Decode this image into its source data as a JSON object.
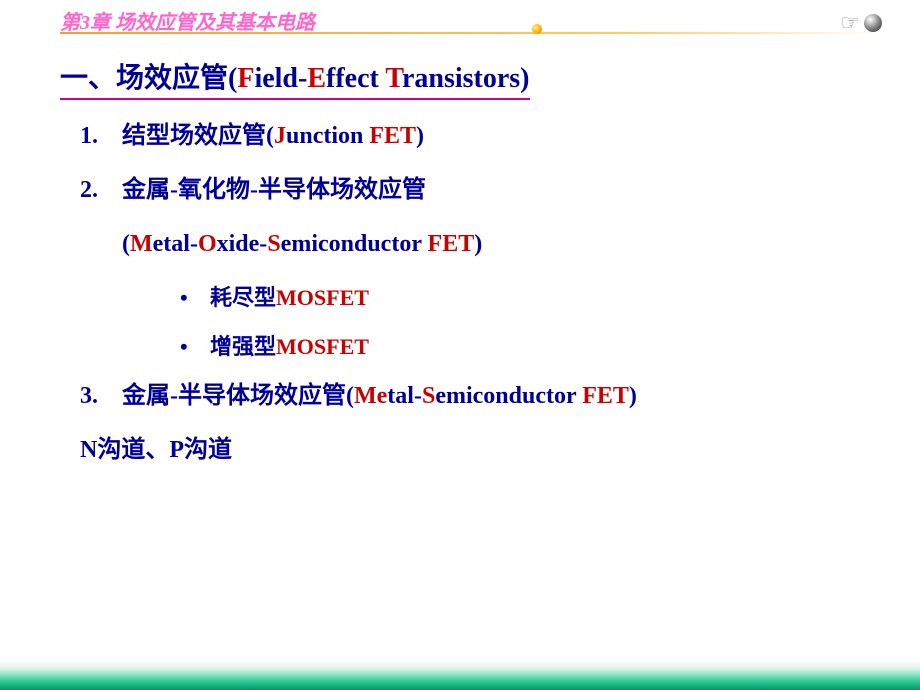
{
  "header": {
    "chapter_title": "第3章  场效应管及其基本电路"
  },
  "heading": {
    "prefix": "一、场效应管(",
    "f": "F",
    "mid1": "ield-",
    "e": "E",
    "mid2": "ffect ",
    "t": "T",
    "suffix": "ransistors)"
  },
  "items": [
    {
      "num": "1.",
      "cn": "结型场效应管(",
      "r1": "J",
      "p1": "unction ",
      "r2": "FET",
      "p2": ")"
    },
    {
      "num": "2.",
      "cn": "金属-氧化物-半导体场效应管",
      "line2_open": "(",
      "r1": "M",
      "p1": "etal-",
      "r2": "O",
      "p2": "xide-",
      "r3": "S",
      "p3": "emiconductor ",
      "r4": "FET",
      "p4": ")"
    },
    {
      "num": "3.",
      "cn": "金属-半导体场效应管(",
      "r1": "Me",
      "p1": "tal-",
      "r2": "S",
      "p2": "emiconductor ",
      "r3": "FET",
      "p3": ")"
    }
  ],
  "subitems": [
    {
      "bullet": "•",
      "cn": "耗尽型",
      "en": "MOSFET"
    },
    {
      "bullet": "•",
      "cn": "增强型",
      "en": "MOSFET"
    }
  ],
  "footer_note": "N沟道、P沟道",
  "colors": {
    "heading_blue": "#000099",
    "accent_red": "#cc0000",
    "chapter_pink": "#ff66cc",
    "underline_magenta": "#cc0099",
    "footer_green": "#009966"
  },
  "typography": {
    "chapter_fontsize": 20,
    "heading_fontsize": 28,
    "item_fontsize": 24,
    "subitem_fontsize": 22
  }
}
